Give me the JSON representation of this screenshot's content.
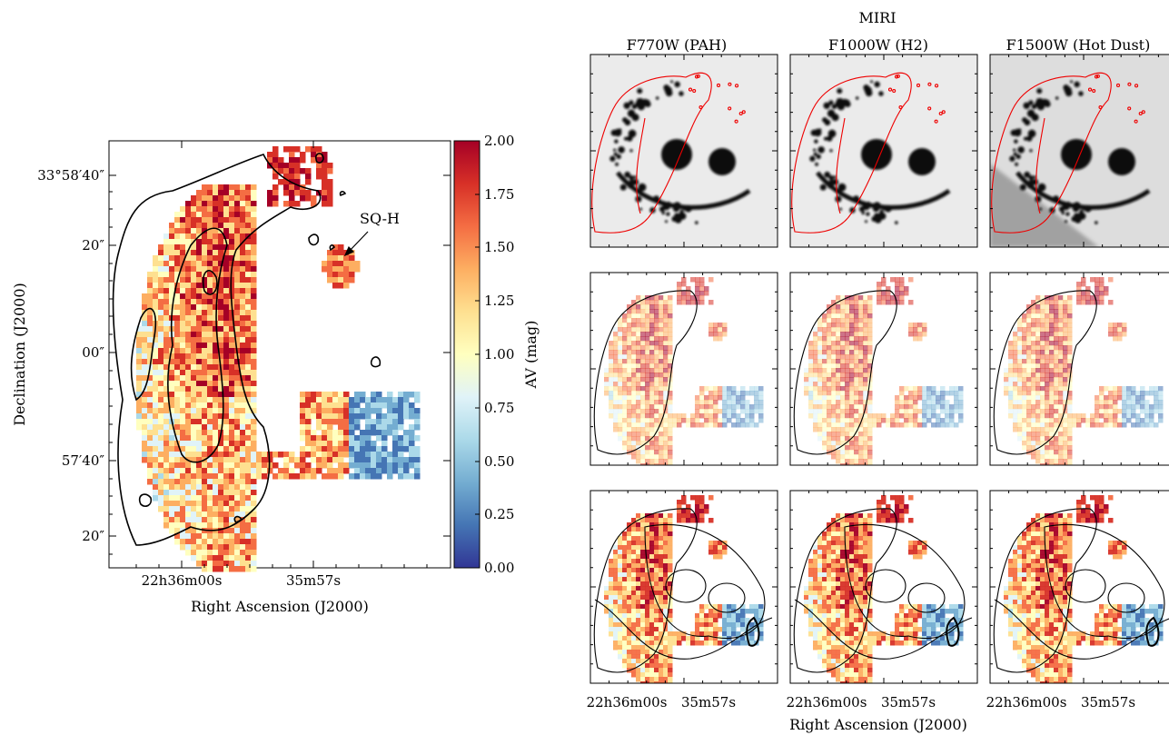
{
  "left_panel": {
    "ylabel": "Declination (J2000)",
    "xlabel": "Right Ascension (J2000)",
    "yticks": [
      "33°58′40″",
      "20″",
      "00″",
      "57′40″",
      "20″"
    ],
    "xticks": [
      "22h36m00s",
      "35m57s"
    ],
    "annotation": "SQ-H",
    "colorbar": {
      "label": "AV (mag)",
      "ticks": [
        "2.00",
        "1.75",
        "1.50",
        "1.25",
        "1.00",
        "0.75",
        "0.50",
        "0.25",
        "0.00"
      ],
      "range": [
        0.0,
        2.0
      ],
      "colormap": [
        "#313695",
        "#4575b4",
        "#74add1",
        "#abd9e9",
        "#e0f3f8",
        "#ffffbf",
        "#fee090",
        "#fdae61",
        "#f46d43",
        "#d73027",
        "#a50026"
      ]
    }
  },
  "right_grid": {
    "instrument": "MIRI",
    "columns": [
      "F770W (PAH)",
      "F1000W (H2)",
      "F1500W (Hot Dust)"
    ],
    "xticks": [
      "22h36m00s",
      "35m57s"
    ],
    "xlabel": "Right Ascension (J2000)"
  },
  "chart_data": {
    "type": "heatmap",
    "title": "",
    "quantity": "AV (mag)",
    "value_range": [
      0.0,
      2.0
    ],
    "panels": [
      {
        "name": "AV map with contours",
        "position": "left"
      },
      {
        "row": 1,
        "columns": [
          "F770W (PAH)",
          "F1000W (H2)",
          "F1500W (Hot Dust)"
        ],
        "content": "MIRI greyscale image with red contours"
      },
      {
        "row": 2,
        "columns": [
          "F770W (PAH)",
          "F1000W (H2)",
          "F1500W (Hot Dust)"
        ],
        "content": "faded AV map with black contours"
      },
      {
        "row": 3,
        "columns": [
          "F770W (PAH)",
          "F1000W (H2)",
          "F1500W (Hot Dust)"
        ],
        "content": "AV map with MIRI contours"
      }
    ]
  }
}
